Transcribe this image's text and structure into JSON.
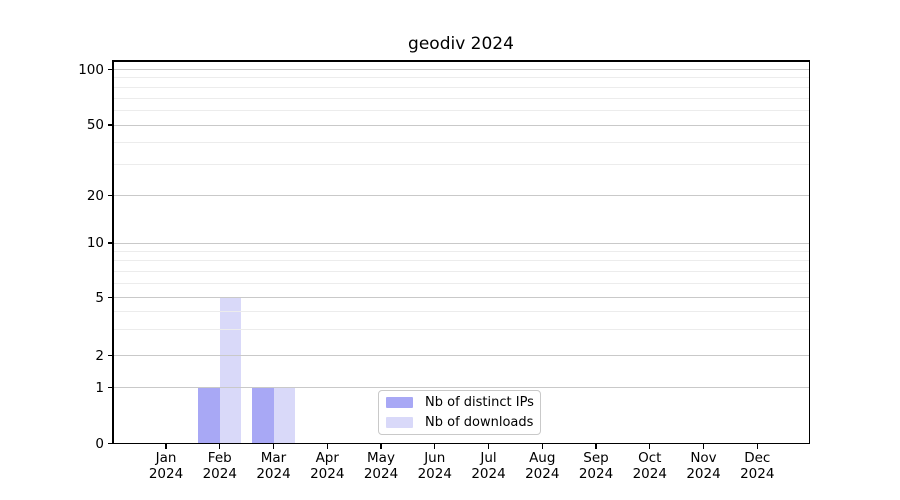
{
  "chart_data": {
    "type": "bar",
    "title": "geodiv 2024",
    "months": [
      "Jan",
      "Feb",
      "Mar",
      "Apr",
      "May",
      "Jun",
      "Jul",
      "Aug",
      "Sep",
      "Oct",
      "Nov",
      "Dec"
    ],
    "year": "2024",
    "series": [
      {
        "name": "Nb of distinct IPs",
        "color": "#a8a8f5",
        "values": [
          0,
          1,
          1,
          0,
          0,
          0,
          0,
          0,
          0,
          0,
          0,
          0
        ]
      },
      {
        "name": "Nb of downloads",
        "color": "#d9d9f9",
        "values": [
          0,
          5,
          1,
          0,
          0,
          0,
          0,
          0,
          0,
          0,
          0,
          0
        ]
      }
    ],
    "yaxis": {
      "scale": "symlog",
      "tick_values": [
        0,
        1,
        2,
        5,
        10,
        20,
        50,
        100
      ],
      "minor_tick_values": [
        3,
        4,
        6,
        7,
        8,
        9,
        30,
        40,
        60,
        70,
        80,
        90
      ]
    },
    "grid": {
      "horizontal": true,
      "major_color": "#c9c9c9",
      "minor_color": "#ececec"
    },
    "legend": {
      "position": "inside-bottom-center"
    }
  }
}
